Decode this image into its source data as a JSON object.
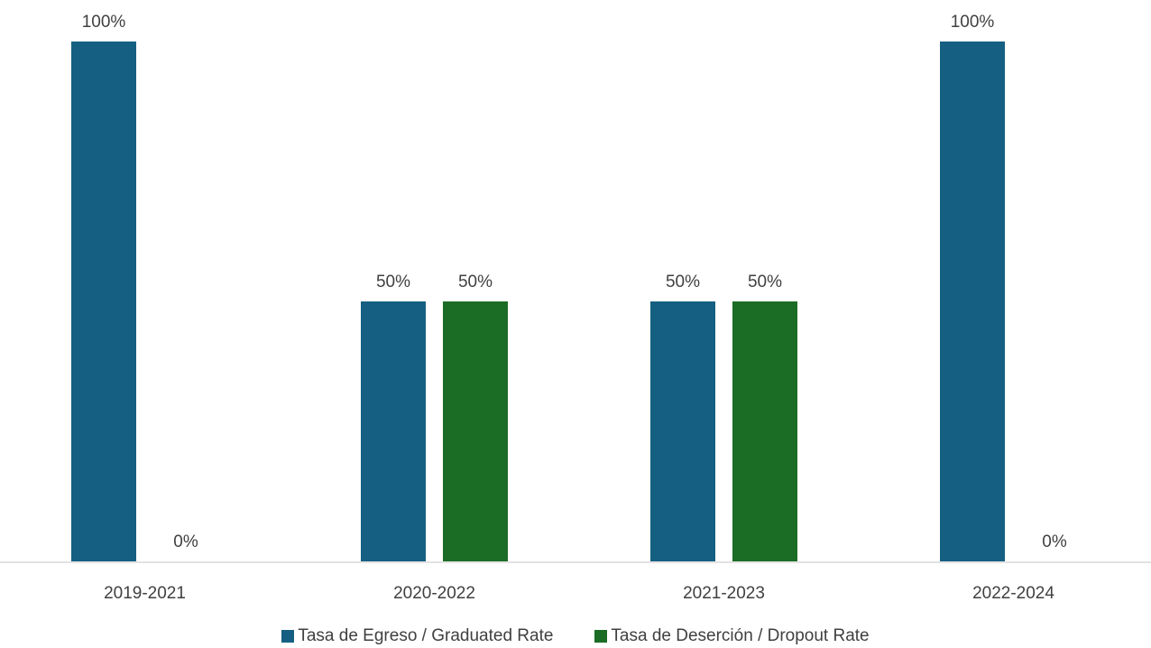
{
  "chart_data": {
    "type": "bar",
    "categories": [
      "2019-2021",
      "2020-2022",
      "2021-2023",
      "2022-2024"
    ],
    "series": [
      {
        "name": "Tasa de Egreso / Graduated Rate",
        "values": [
          1.0,
          0.5,
          0.5,
          1.0
        ],
        "labels": [
          "100%",
          "50%",
          "50%",
          "100%"
        ],
        "color": "#156082"
      },
      {
        "name": "Tasa de Deserción / Dropout Rate",
        "values": [
          0.0,
          0.5,
          0.5,
          0.0
        ],
        "labels": [
          "0%",
          "50%",
          "50%",
          "0%"
        ],
        "color": "#1b6c25"
      }
    ],
    "ylim": [
      0,
      1
    ],
    "grid": false,
    "legend_position": "bottom"
  }
}
